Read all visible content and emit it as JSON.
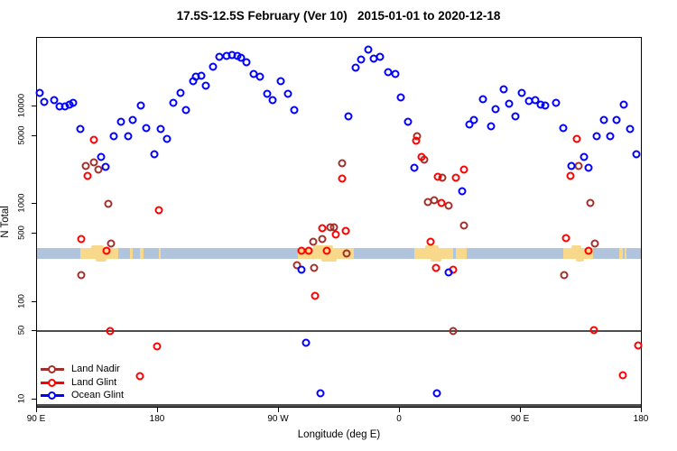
{
  "title": "17.5S-12.5S February (Ver 10)   2015-01-01 to 2020-12-18",
  "chart_data": {
    "type": "scatter",
    "title": "17.5S-12.5S February (Ver 10)   2015-01-01 to 2020-12-18",
    "xlabel": "Longitude (deg E)",
    "ylabel": "N Total",
    "x_axis": {
      "unit": "degrees east of left edge (left edge = 90 E, axis wraps eastward 450 deg)",
      "range": [
        0,
        450
      ],
      "ticks": [
        0,
        90,
        180,
        270,
        360,
        450
      ],
      "tick_labels": [
        "90 E",
        "180",
        "90 W",
        "0",
        "90 E",
        "180"
      ]
    },
    "y_axis": {
      "scale": "log10",
      "range": [
        8.1,
        50000
      ],
      "ticks": [
        10,
        50,
        100,
        500,
        1000,
        5000,
        10000
      ],
      "tick_labels": [
        "10",
        "50",
        "100",
        "500",
        "1000",
        "5000",
        "10000"
      ]
    },
    "grid": false,
    "reference_line": {
      "y": 50,
      "color": "#4d4d4d"
    },
    "baseline_bar": {
      "color": "#4d4d4d"
    },
    "geo_band": {
      "description": "horizontal strip marking ocean vs land along the latitude belt",
      "value_range": [
        277,
        355
      ],
      "ocean_color": "#b0c4de",
      "land_color": "#f8d98b",
      "land_patches_deg": [
        [
          32,
          60.5,
          1
        ],
        [
          69.5,
          71.5,
          0
        ],
        [
          76.5,
          79,
          0
        ],
        [
          90.5,
          92,
          0
        ],
        [
          194,
          236,
          1
        ],
        [
          281,
          309.5,
          1
        ],
        [
          311.5,
          320,
          0
        ],
        [
          391.5,
          413.5,
          1
        ],
        [
          433.5,
          436,
          0
        ],
        [
          437,
          438.5,
          0
        ]
      ]
    },
    "legend": {
      "position": "bottom-left"
    },
    "series": [
      {
        "name": "Land Nadir",
        "color": "#a0302a",
        "points": [
          [
            33,
            187
          ],
          [
            36.5,
            2450
          ],
          [
            42,
            2670
          ],
          [
            45.5,
            2260
          ],
          [
            53,
            1010
          ],
          [
            55,
            393
          ],
          [
            193.5,
            239
          ],
          [
            205.5,
            413
          ],
          [
            206.5,
            224
          ],
          [
            212.5,
            437
          ],
          [
            218,
            575
          ],
          [
            221,
            580
          ],
          [
            227,
            2630
          ],
          [
            230.5,
            311
          ],
          [
            283,
            4970
          ],
          [
            288,
            2860
          ],
          [
            291,
            1060
          ],
          [
            295.5,
            1100
          ],
          [
            301.5,
            1870
          ],
          [
            306,
            973
          ],
          [
            309.5,
            50
          ],
          [
            317.5,
            605
          ],
          [
            392,
            187
          ],
          [
            403,
            2450
          ],
          [
            411.5,
            1020
          ],
          [
            415,
            394
          ]
        ]
      },
      {
        "name": "Land Glint",
        "color": "#ff0000",
        "points": [
          [
            33,
            437
          ],
          [
            37.5,
            1950
          ],
          [
            42.5,
            4560
          ],
          [
            52,
            334
          ],
          [
            54.5,
            50
          ],
          [
            76.5,
            17.4
          ],
          [
            89,
            35
          ],
          [
            90.5,
            875
          ],
          [
            196.5,
            337
          ],
          [
            202,
            337
          ],
          [
            206.9,
            115
          ],
          [
            212,
            568
          ],
          [
            215.8,
            337
          ],
          [
            222,
            486
          ],
          [
            227,
            1820
          ],
          [
            229.5,
            530
          ],
          [
            282,
            4470
          ],
          [
            286,
            3070
          ],
          [
            292.5,
            410
          ],
          [
            297,
            222
          ],
          [
            298,
            1900
          ],
          [
            301,
            1030
          ],
          [
            309.5,
            215
          ],
          [
            311.5,
            1870
          ],
          [
            317.5,
            2280
          ],
          [
            393.5,
            453
          ],
          [
            397,
            1950
          ],
          [
            401.5,
            4700
          ],
          [
            410.5,
            330
          ],
          [
            414.5,
            51
          ],
          [
            436,
            17.6
          ],
          [
            447,
            36
          ]
        ]
      },
      {
        "name": "Ocean Glint",
        "color": "#0000ff",
        "points": [
          [
            2,
            13900
          ],
          [
            5.5,
            11200
          ],
          [
            12.5,
            11500
          ],
          [
            16.5,
            10100
          ],
          [
            21,
            10000
          ],
          [
            24.5,
            10500
          ],
          [
            27,
            10900
          ],
          [
            32.5,
            5900
          ],
          [
            47.5,
            3070
          ],
          [
            51,
            2400
          ],
          [
            57,
            5000
          ],
          [
            62.5,
            6900
          ],
          [
            67.5,
            4970
          ],
          [
            71,
            7200
          ],
          [
            77,
            10200
          ],
          [
            81.5,
            6000
          ],
          [
            87.5,
            3250
          ],
          [
            92,
            5900
          ],
          [
            97,
            4700
          ],
          [
            101.5,
            10900
          ],
          [
            106.5,
            13900
          ],
          [
            111,
            9200
          ],
          [
            116,
            18000
          ],
          [
            118.5,
            20000
          ],
          [
            122.5,
            20800
          ],
          [
            125.5,
            16300
          ],
          [
            131,
            25400
          ],
          [
            135.5,
            32400
          ],
          [
            141,
            33200
          ],
          [
            145,
            33700
          ],
          [
            149,
            33200
          ],
          [
            152,
            31400
          ],
          [
            155.5,
            28300
          ],
          [
            161,
            21700
          ],
          [
            166,
            20000
          ],
          [
            171,
            13600
          ],
          [
            175,
            11700
          ],
          [
            181.5,
            18000
          ],
          [
            186.5,
            13600
          ],
          [
            191.5,
            9100
          ],
          [
            196.5,
            215
          ],
          [
            200,
            38
          ],
          [
            211,
            11.5
          ],
          [
            232,
            7900
          ],
          [
            237,
            24800
          ],
          [
            241,
            30300
          ],
          [
            246.5,
            38200
          ],
          [
            250.5,
            31000
          ],
          [
            255.5,
            32400
          ],
          [
            261,
            22300
          ],
          [
            266.5,
            21500
          ],
          [
            271,
            12500
          ],
          [
            276,
            6950
          ],
          [
            281,
            2340
          ],
          [
            297.5,
            11.5
          ],
          [
            306,
            200
          ],
          [
            316.5,
            1370
          ],
          [
            321.5,
            6600
          ],
          [
            325,
            7300
          ],
          [
            331.5,
            11800
          ],
          [
            337.5,
            6300
          ],
          [
            341,
            9400
          ],
          [
            347,
            15100
          ],
          [
            351.5,
            10700
          ],
          [
            356,
            7900
          ],
          [
            361,
            13900
          ],
          [
            366,
            11300
          ],
          [
            371,
            11700
          ],
          [
            375,
            10500
          ],
          [
            378,
            10200
          ],
          [
            386,
            10900
          ],
          [
            391.5,
            6000
          ],
          [
            397.5,
            2480
          ],
          [
            407,
            3070
          ],
          [
            410.5,
            2350
          ],
          [
            416.5,
            5000
          ],
          [
            422,
            7300
          ],
          [
            426.5,
            4970
          ],
          [
            431,
            7200
          ],
          [
            436.5,
            10500
          ],
          [
            441,
            5900
          ],
          [
            446,
            3250
          ]
        ]
      }
    ]
  }
}
